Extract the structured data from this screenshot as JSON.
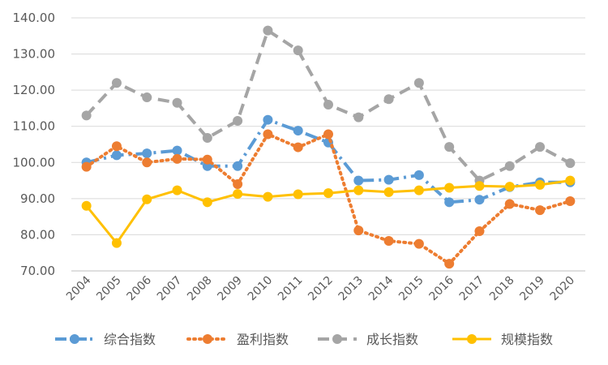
{
  "chart_data": {
    "type": "line",
    "title": "",
    "xlabel": "",
    "ylabel": "",
    "ylim": [
      70,
      140
    ],
    "yticks": [
      "70.00",
      "80.00",
      "90.00",
      "100.00",
      "110.00",
      "120.00",
      "130.00",
      "140.00"
    ],
    "categories": [
      "2004",
      "2005",
      "2006",
      "2007",
      "2008",
      "2009",
      "2010",
      "2011",
      "2012",
      "2013",
      "2014",
      "2015",
      "2016",
      "2017",
      "2018",
      "2019",
      "2020"
    ],
    "grid": true,
    "legend_position": "bottom",
    "series": [
      {
        "name": "综合指数",
        "color": "#5B9BD5",
        "style": "dash-dot",
        "values": [
          100.0,
          102.0,
          102.5,
          103.3,
          99.0,
          99.0,
          111.8,
          108.8,
          105.5,
          95.0,
          95.2,
          96.5,
          89.0,
          89.7,
          93.2,
          94.5,
          94.5
        ]
      },
      {
        "name": "盈利指数",
        "color": "#ED7D31",
        "style": "dotted",
        "values": [
          98.8,
          104.5,
          100.0,
          101.0,
          100.8,
          94.0,
          107.8,
          104.2,
          107.8,
          81.2,
          78.3,
          77.5,
          72.0,
          81.0,
          88.5,
          86.8,
          89.3
        ]
      },
      {
        "name": "成长指数",
        "color": "#A5A5A5",
        "style": "dashed",
        "values": [
          113.0,
          122.0,
          118.0,
          116.5,
          106.8,
          111.5,
          136.5,
          131.0,
          116.0,
          112.5,
          117.5,
          122.0,
          104.3,
          95.0,
          99.0,
          104.3,
          99.8
        ]
      },
      {
        "name": "规模指数",
        "color": "#FFC000",
        "style": "solid",
        "values": [
          88.0,
          77.7,
          89.8,
          92.3,
          89.0,
          91.3,
          90.5,
          91.2,
          91.5,
          92.3,
          91.8,
          92.3,
          93.0,
          93.5,
          93.3,
          93.8,
          95.0
        ]
      }
    ]
  }
}
